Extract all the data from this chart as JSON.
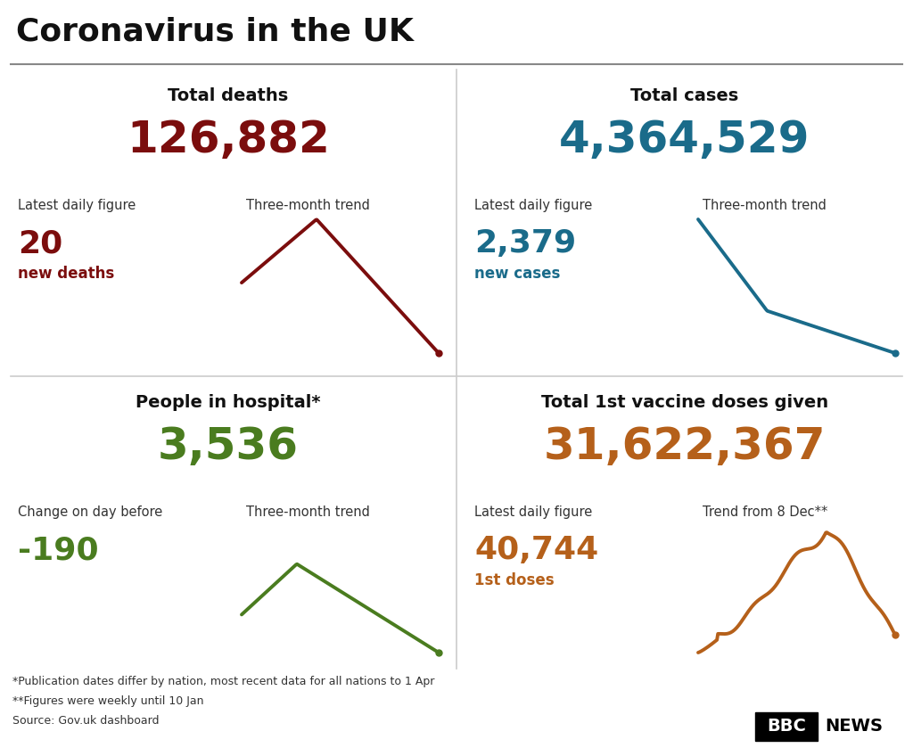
{
  "title": "Coronavirus in the UK",
  "background_color": "#ffffff",
  "panels": [
    {
      "title": "Total deaths",
      "big_number": "126,882",
      "big_number_color": "#7b0d0d",
      "label1": "Latest daily figure",
      "label2": "Three-month trend",
      "small_number": "20",
      "small_number_color": "#7b0d0d",
      "small_label": "new deaths",
      "small_label_color": "#7b0d0d",
      "trend_color": "#7b0d0d",
      "trend_type": "rise_fall",
      "col": 0,
      "row": 1
    },
    {
      "title": "Total cases",
      "big_number": "4,364,529",
      "big_number_color": "#1a6b8a",
      "label1": "Latest daily figure",
      "label2": "Three-month trend",
      "small_number": "2,379",
      "small_number_color": "#1a6b8a",
      "small_label": "new cases",
      "small_label_color": "#1a6b8a",
      "trend_color": "#1a6b8a",
      "trend_type": "steep_fall",
      "col": 1,
      "row": 1
    },
    {
      "title": "People in hospital*",
      "big_number": "3,536",
      "big_number_color": "#4a7c1f",
      "label1": "Change on day before",
      "label2": "Three-month trend",
      "small_number": "-190",
      "small_number_color": "#4a7c1f",
      "small_label": "",
      "small_label_color": "#4a7c1f",
      "trend_color": "#4a7c1f",
      "trend_type": "rise_fall_end_low",
      "col": 0,
      "row": 0
    },
    {
      "title": "Total 1st vaccine doses given",
      "big_number": "31,622,367",
      "big_number_color": "#b5601a",
      "label1": "Latest daily figure",
      "label2": "Trend from 8 Dec**",
      "small_number": "40,744",
      "small_number_color": "#b5601a",
      "small_label": "1st doses",
      "small_label_color": "#b5601a",
      "trend_color": "#b5601a",
      "trend_type": "vaccine",
      "col": 1,
      "row": 0
    }
  ],
  "footnotes": [
    "*Publication dates differ by nation, most recent data for all nations to 1 Apr",
    "**Figures were weekly until 10 Jan",
    "Source: Gov.uk dashboard"
  ]
}
